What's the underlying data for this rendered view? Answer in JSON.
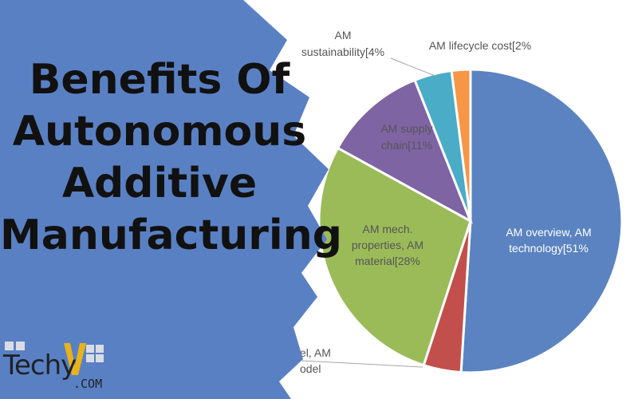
{
  "colors": {
    "background": "#eef0f3",
    "chart_panel": "#ffffff",
    "banner": "#5a80c4",
    "title": "#111111",
    "logo_accent": "#e8b21a",
    "series": [
      "#5b83c1",
      "#c24f4b",
      "#9bbb59",
      "#7f64a4",
      "#4aacc6",
      "#f79646"
    ]
  },
  "banner": {
    "title_lines": [
      "Benefits Of",
      "Autonomous",
      "Additive",
      "Manufacturing"
    ]
  },
  "logo": {
    "word": "Techy",
    "suffix": ".COM",
    "mark_icon": "techyv-y-mark-icon"
  },
  "chart_data": {
    "type": "pie",
    "title": "",
    "slices": [
      {
        "label_lines": [
          "AM overview, AM",
          "technology[51%"
        ],
        "value": 51,
        "color": "#5b83c1"
      },
      {
        "label_lines": [
          "el, AM",
          "odel"
        ],
        "value": 4,
        "color": "#c24f4b"
      },
      {
        "label_lines": [
          "AM mech.",
          "properties, AM",
          "material[28%"
        ],
        "value": 28,
        "color": "#9bbb59"
      },
      {
        "label_lines": [
          "AM supply",
          "chain[11%"
        ],
        "value": 11,
        "color": "#7f64a4"
      },
      {
        "label_lines": [
          "AM",
          "sustainability[4%"
        ],
        "value": 4,
        "color": "#4aacc6"
      },
      {
        "label_lines": [
          "AM lifecycle cost[2%"
        ],
        "value": 2,
        "color": "#f79646"
      }
    ]
  }
}
